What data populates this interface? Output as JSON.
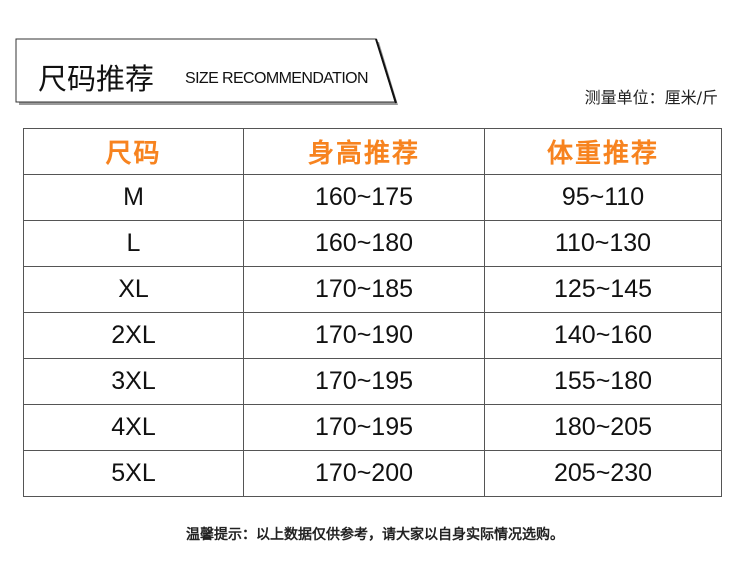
{
  "title": {
    "cn": "尺码推荐",
    "en": "SIZE RECOMMENDATION"
  },
  "unit_label": "测量单位：厘米/斤",
  "accent_color": "#f7831f",
  "table": {
    "headers": [
      "尺码",
      "身高推荐",
      "体重推荐"
    ],
    "rows": [
      [
        "M",
        "160~175",
        "95~110"
      ],
      [
        "L",
        "160~180",
        "110~130"
      ],
      [
        "XL",
        "170~185",
        "125~145"
      ],
      [
        "2XL",
        "170~190",
        "140~160"
      ],
      [
        "3XL",
        "170~195",
        "155~180"
      ],
      [
        "4XL",
        "170~195",
        "180~205"
      ],
      [
        "5XL",
        "170~200",
        "205~230"
      ]
    ]
  },
  "note": "温馨提示：以上数据仅供参考，请大家以自身实际情况选购。"
}
